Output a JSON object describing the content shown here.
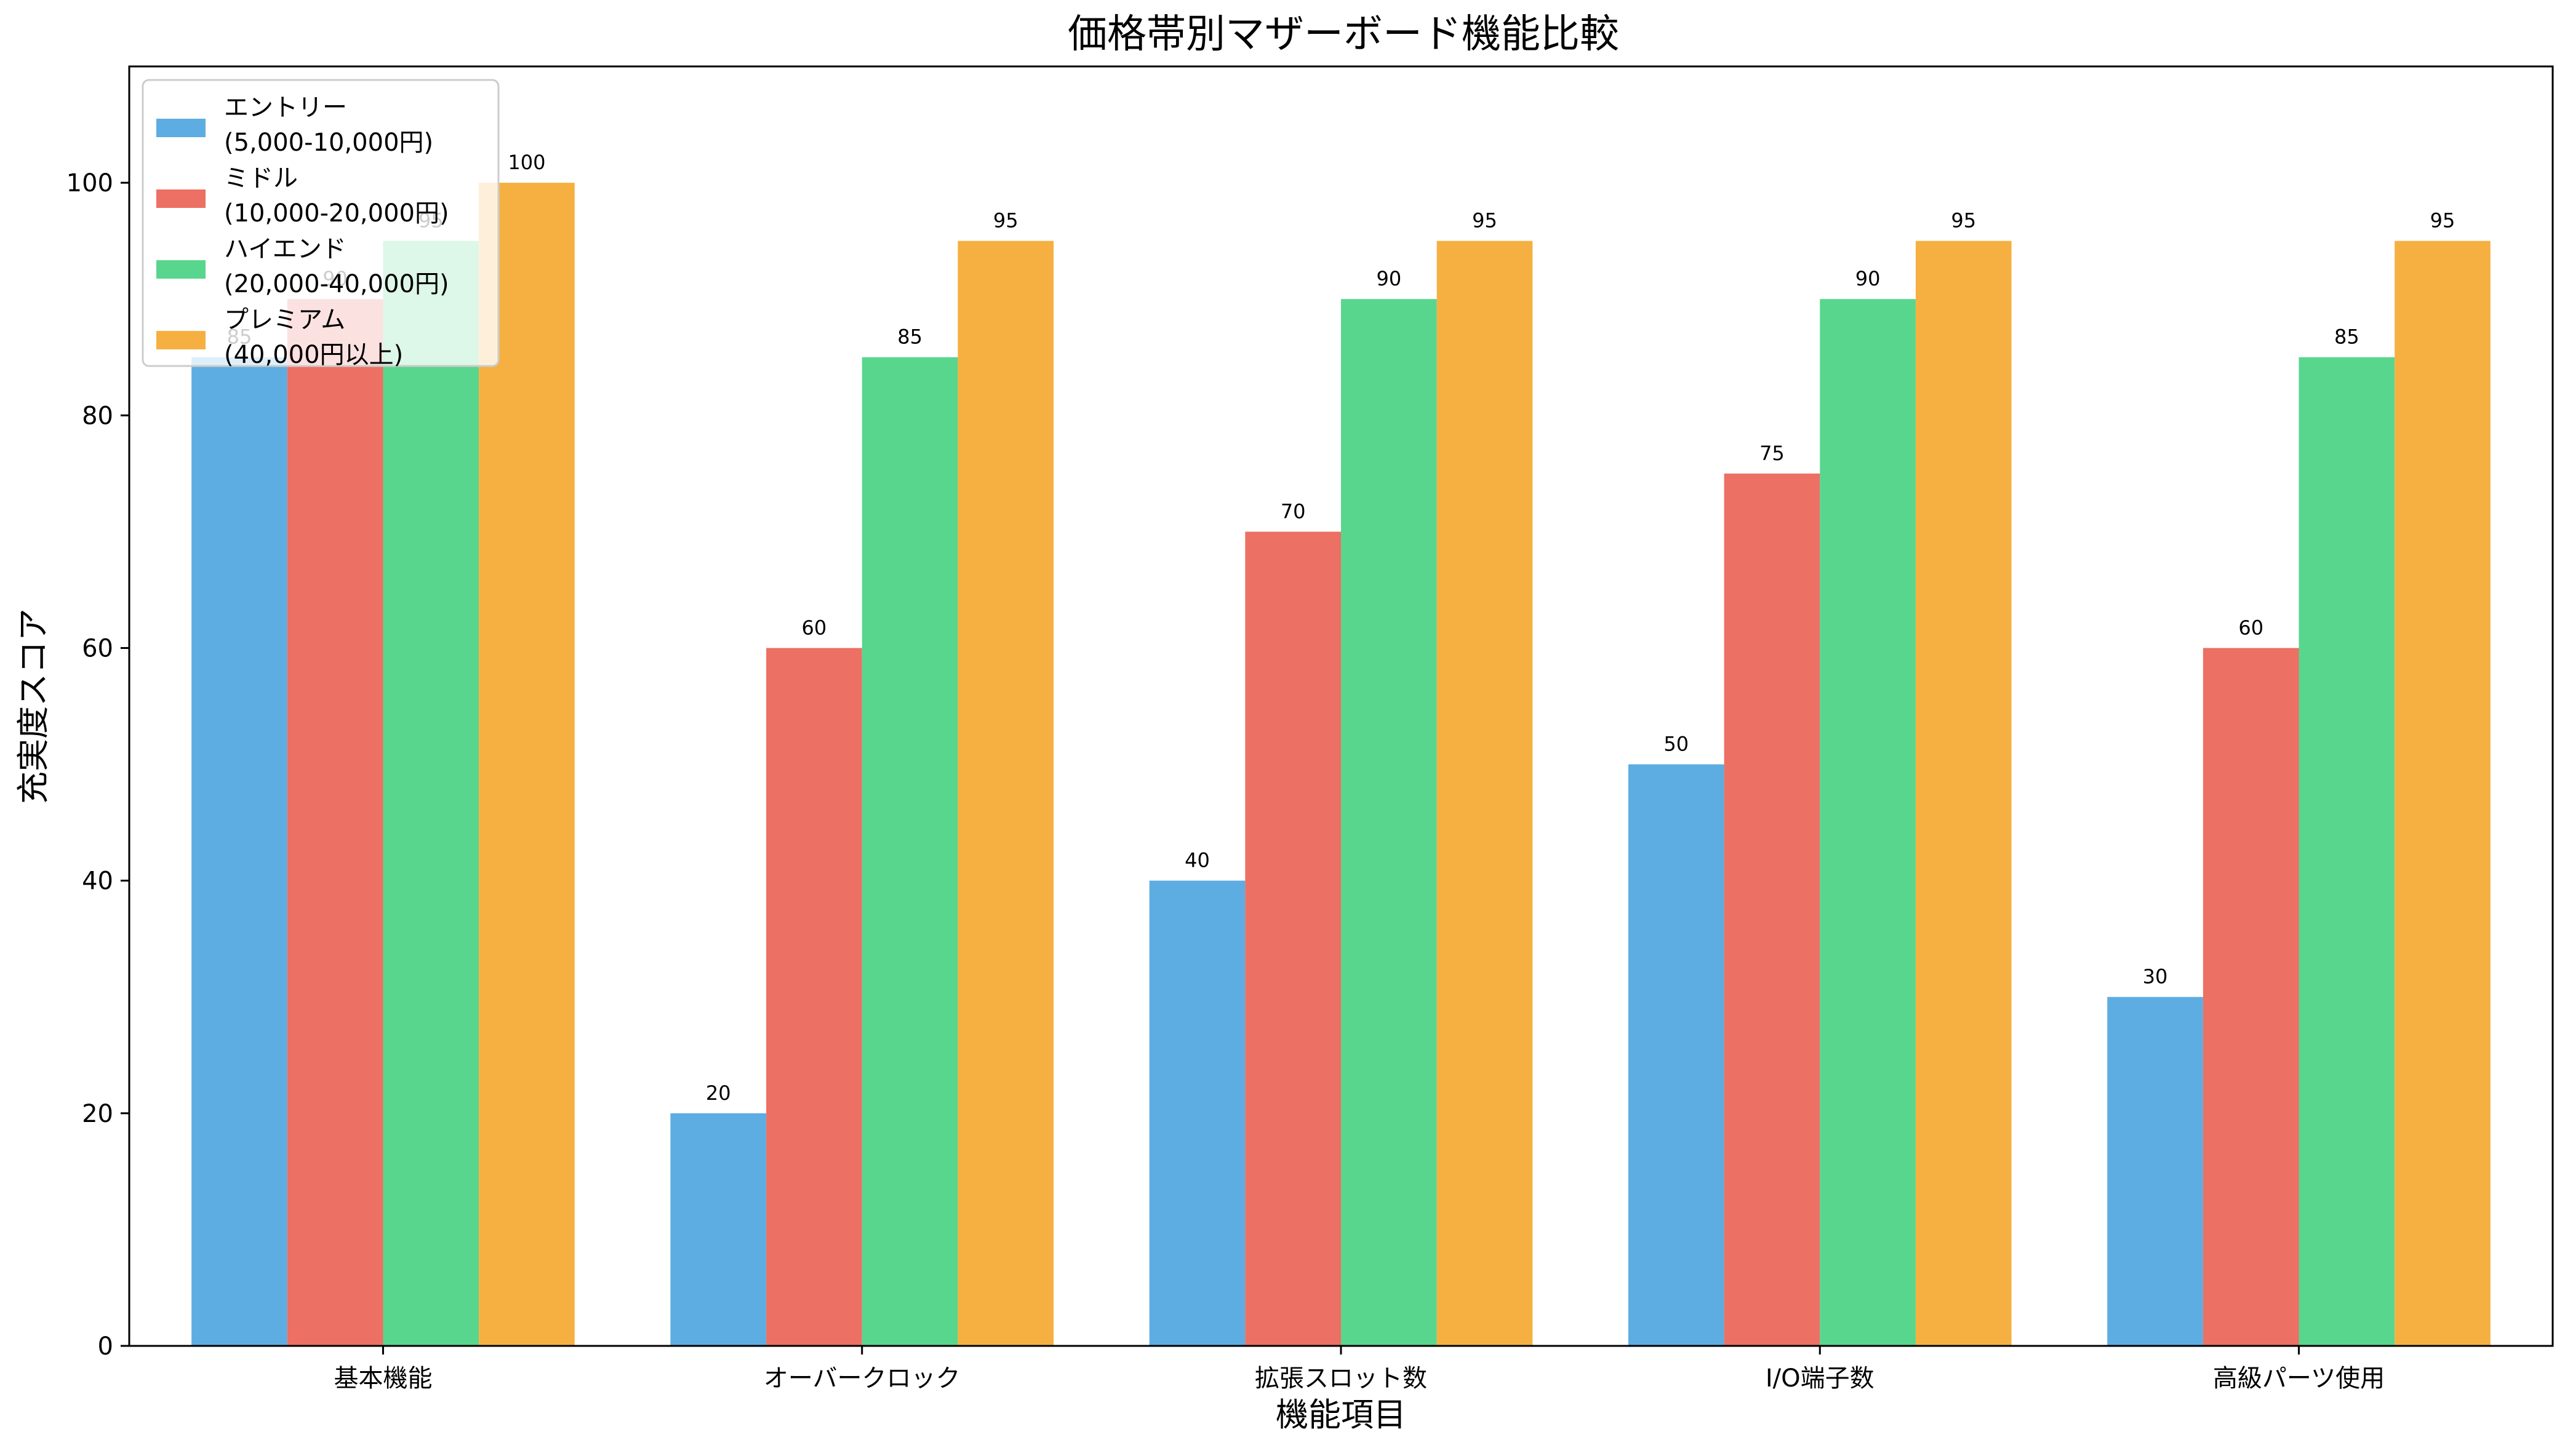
{
  "chart_data": {
    "type": "bar",
    "title": "価格帯別マザーボード機能比較",
    "xlabel": "機能項目",
    "ylabel": "充実度スコア",
    "ylim": [
      0,
      110
    ],
    "yticks": [
      0,
      20,
      40,
      60,
      80,
      100
    ],
    "grid": false,
    "legend_position": "top-left",
    "categories": [
      "基本機能",
      "オーバークロック",
      "拡張スロット数",
      "I/O端子数",
      "高級パーツ使用"
    ],
    "series": [
      {
        "name": [
          "エントリー",
          "(5,000-10,000円)"
        ],
        "color": "#5DADE2",
        "values": [
          85,
          20,
          40,
          50,
          30
        ]
      },
      {
        "name": [
          "ミドル",
          "(10,000-20,000円)"
        ],
        "color": "#EC7063",
        "values": [
          90,
          60,
          70,
          75,
          60
        ]
      },
      {
        "name": [
          "ハイエンド",
          "(20,000-40,000円)"
        ],
        "color": "#58D68D",
        "values": [
          95,
          85,
          90,
          90,
          85
        ]
      },
      {
        "name": [
          "プレミアム",
          "(40,000円以上)"
        ],
        "color": "#F5B041",
        "values": [
          100,
          95,
          95,
          95,
          95
        ]
      }
    ]
  }
}
